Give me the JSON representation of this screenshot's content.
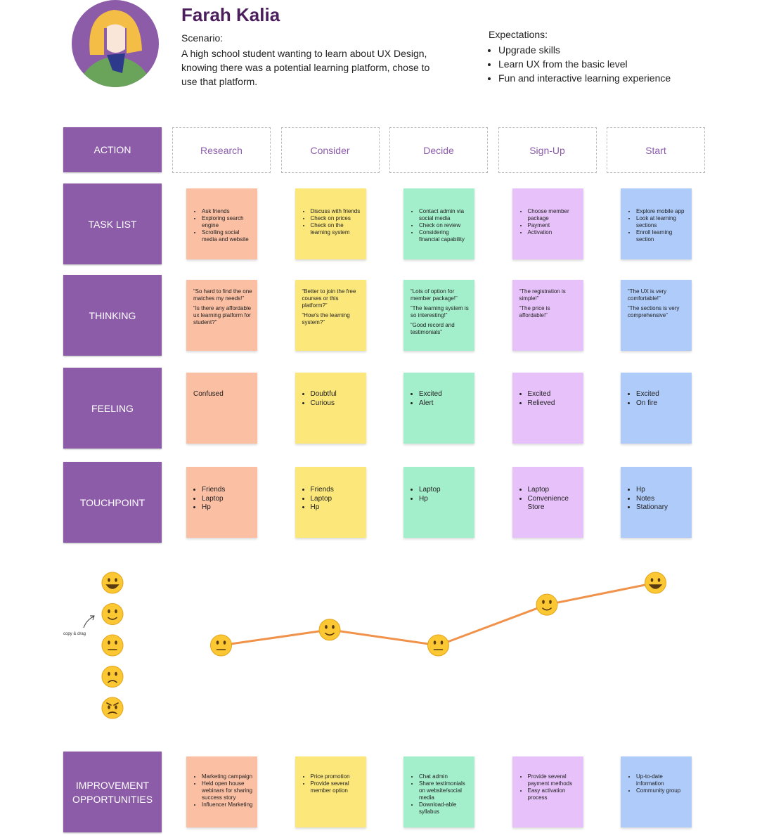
{
  "header": {
    "name": "Farah Kalia",
    "scenario_label": "Scenario:",
    "scenario": "A high school student wanting to learn about UX Design, knowing there was a potential learning platform, chose to use that platform.",
    "expectations_label": "Expectations:",
    "expectations": [
      "Upgrade skills",
      "Learn UX from the basic level",
      "Fun and interactive learning experience"
    ]
  },
  "action_label": "ACTION",
  "stages": [
    "Research",
    "Consider",
    "Decide",
    "Sign-Up",
    "Start"
  ],
  "rows": [
    {
      "label": "TASK LIST",
      "notes": [
        {
          "bulleted": true,
          "items": [
            "Ask friends",
            "Exploring search engine",
            "Scrolling social media and website"
          ]
        },
        {
          "bulleted": true,
          "items": [
            "Discuss with friends",
            "Check on prices",
            "Check on the learning system"
          ]
        },
        {
          "bulleted": true,
          "items": [
            "Contact admin via social media",
            "Check on review",
            "Considering financial capability"
          ]
        },
        {
          "bulleted": true,
          "items": [
            "Choose member package",
            "Payment",
            "Activation"
          ]
        },
        {
          "bulleted": true,
          "items": [
            "Explore mobile app",
            "Look at learning sections",
            "Enroll learning section"
          ]
        }
      ]
    },
    {
      "label": "THINKING",
      "notes": [
        {
          "bulleted": false,
          "items": [
            "“So hard to find the one matches my needs!”",
            "“Is there any affordable ux learning platform for student?”"
          ]
        },
        {
          "bulleted": false,
          "items": [
            "“Better to join the free courses or this platform?”",
            "“How's the learning system?”"
          ]
        },
        {
          "bulleted": false,
          "items": [
            "“Lots of option for member package!”",
            "“The learning system is so interesting!”",
            "“Good record and testimonials”"
          ]
        },
        {
          "bulleted": false,
          "items": [
            "“The registration is simple!”",
            "“The price is affordable!”"
          ]
        },
        {
          "bulleted": false,
          "items": [
            "“The UX is very comfortable!”",
            "“The sections is very comprehensive”"
          ]
        }
      ]
    },
    {
      "label": "FEELING",
      "notes": [
        {
          "bulleted": false,
          "items": [
            "Confused"
          ]
        },
        {
          "bulleted": true,
          "items": [
            "Doubtful",
            "Curious"
          ]
        },
        {
          "bulleted": true,
          "items": [
            "Excited",
            "Alert"
          ]
        },
        {
          "bulleted": true,
          "items": [
            "Excited",
            "Relieved"
          ]
        },
        {
          "bulleted": true,
          "items": [
            "Excited",
            "On fire"
          ]
        }
      ]
    },
    {
      "label": "TOUCHPOINT",
      "notes": [
        {
          "bulleted": true,
          "items": [
            "Friends",
            "Laptop",
            "Hp"
          ]
        },
        {
          "bulleted": true,
          "items": [
            "Friends",
            "Laptop",
            "Hp"
          ]
        },
        {
          "bulleted": true,
          "items": [
            "Laptop",
            "Hp"
          ]
        },
        {
          "bulleted": true,
          "items": [
            "Laptop",
            "Convenience Store"
          ]
        },
        {
          "bulleted": true,
          "items": [
            "Hp",
            "Notes",
            "Stationary"
          ]
        }
      ]
    }
  ],
  "emotion": {
    "ylim": [
      1,
      5
    ],
    "values": [
      3,
      3.5,
      3,
      4.3,
      5
    ],
    "hint": "copy & drag"
  },
  "improvement": {
    "label": "IMPROVEMENT OPPORTUNITIES",
    "notes": [
      {
        "bulleted": true,
        "items": [
          "Marketing campaign",
          "Held open house webinars for sharing success story",
          "Influencer Marketing"
        ]
      },
      {
        "bulleted": true,
        "items": [
          "Price promotion",
          "Provide several member option"
        ]
      },
      {
        "bulleted": true,
        "items": [
          "Chat admin",
          "Share testimonials on website/social media",
          "Download-able syllabus"
        ]
      },
      {
        "bulleted": true,
        "items": [
          "Provide several payment methods",
          "Easy activation process"
        ]
      },
      {
        "bulleted": true,
        "items": [
          "Up-to-date information",
          "Community group"
        ]
      }
    ]
  }
}
